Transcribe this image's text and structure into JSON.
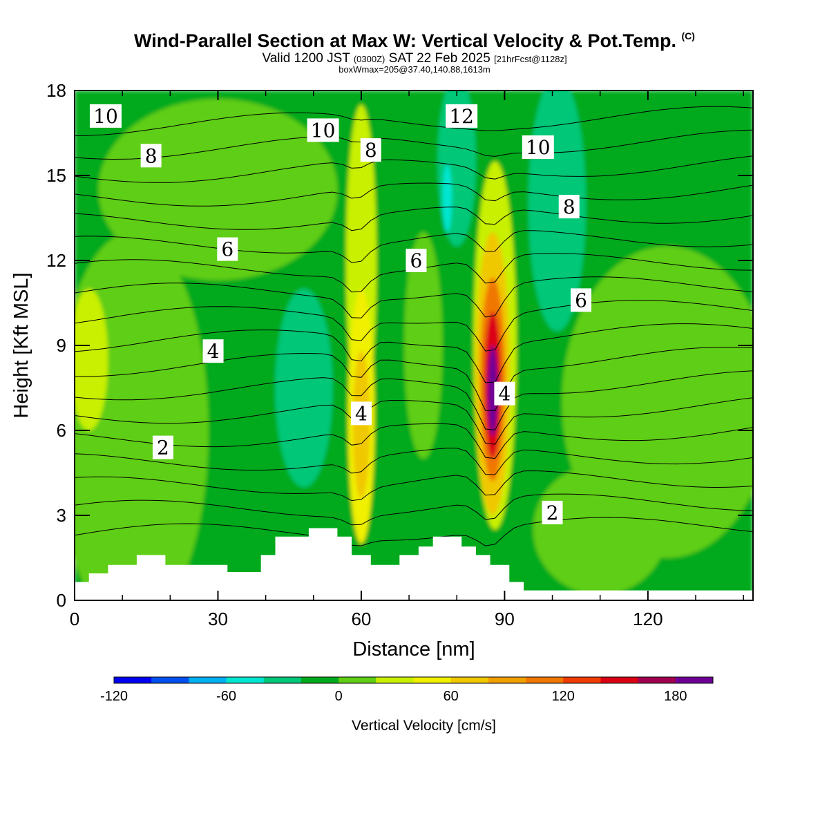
{
  "header": {
    "title_main": "Wind-Parallel Section at Max W: Vertical Velocity & Pot.Temp.",
    "title_mark": "(C)",
    "valid_a": "Valid 1200 JST",
    "valid_b": "(0300Z)",
    "valid_c": "SAT 22 Feb 2025",
    "valid_d": "[21hrFcst@1128z]",
    "box_info": "boxWmax=205@37.40,140.88,1613m"
  },
  "chart_data": {
    "type": "heatmap",
    "xlabel": "Distance [nm]",
    "ylabel": "Height [Kft MSL]",
    "xlim": [
      0,
      142
    ],
    "ylim": [
      0,
      18
    ],
    "x_ticks": [
      "0",
      "30",
      "60",
      "90",
      "120"
    ],
    "y_ticks": [
      "0",
      "3",
      "6",
      "9",
      "12",
      "15",
      "18"
    ],
    "colorbar": {
      "title": "Vertical Velocity [cm/s]",
      "levels": [
        -120,
        -100,
        -80,
        -60,
        -40,
        -20,
        0,
        20,
        40,
        60,
        80,
        100,
        120,
        140,
        160,
        180,
        200
      ],
      "tick_labels": [
        "-120",
        "-60",
        "0",
        "60",
        "120",
        "180"
      ],
      "colors": [
        "#0000f0",
        "#0050f0",
        "#00b0f0",
        "#00e6d0",
        "#00c878",
        "#00aa1e",
        "#5fce14",
        "#c8f000",
        "#f0f000",
        "#f0c800",
        "#f0a000",
        "#f07800",
        "#f03c00",
        "#dc0014",
        "#a00050",
        "#6e0096"
      ]
    },
    "updraft_cores": [
      {
        "x": 60,
        "z": 6.5,
        "peak_w": 80
      },
      {
        "x": 87,
        "z": 7.5,
        "peak_w": 205
      }
    ],
    "theta_contour_labels": [
      {
        "text": "10",
        "x": 6.5,
        "z": 17.1
      },
      {
        "text": "8",
        "x": 16,
        "z": 15.7
      },
      {
        "text": "10",
        "x": 52,
        "z": 16.6
      },
      {
        "text": "8",
        "x": 62,
        "z": 15.9
      },
      {
        "text": "12",
        "x": 81,
        "z": 17.1
      },
      {
        "text": "10",
        "x": 97,
        "z": 16.0
      },
      {
        "text": "8",
        "x": 103.5,
        "z": 13.9
      },
      {
        "text": "6",
        "x": 32,
        "z": 12.4
      },
      {
        "text": "6",
        "x": 71.5,
        "z": 12.0
      },
      {
        "text": "6",
        "x": 106,
        "z": 10.6
      },
      {
        "text": "4",
        "x": 29,
        "z": 8.8
      },
      {
        "text": "4",
        "x": 60,
        "z": 6.6
      },
      {
        "text": "4",
        "x": 90,
        "z": 7.3
      },
      {
        "text": "2",
        "x": 18.5,
        "z": 5.4
      },
      {
        "text": "2",
        "x": 100,
        "z": 3.1
      }
    ]
  }
}
